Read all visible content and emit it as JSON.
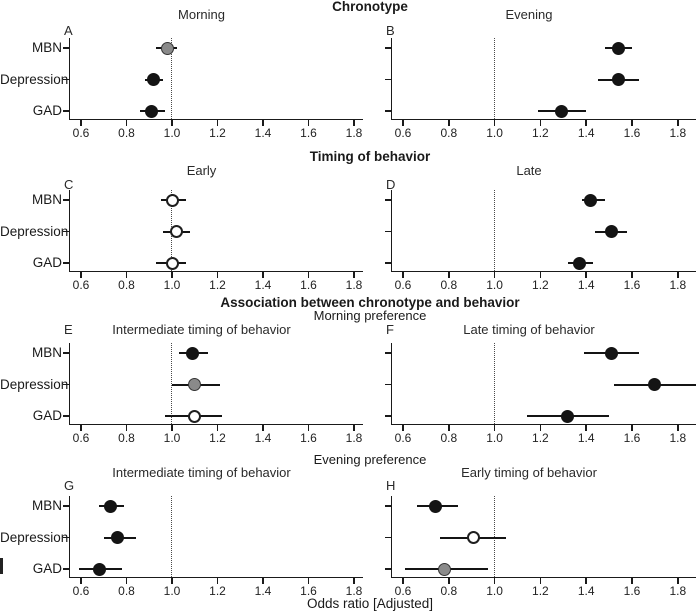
{
  "chart_data": {
    "type": "scatter",
    "subtype": "forest-plot-grid",
    "xlabel": "Odds ratio [Adjusted]",
    "x_ticks": [
      0.6,
      0.8,
      1.0,
      1.2,
      1.4,
      1.6,
      1.8
    ],
    "x_tick_labels": [
      "0.6",
      "0.8",
      "1.0",
      "1.2",
      "1.4",
      "1.6",
      "1.8"
    ],
    "x_domain": [
      0.55,
      1.88
    ],
    "reference_line": 1.0,
    "grid": "off",
    "categories": [
      "MBN",
      "Depression",
      "GAD"
    ],
    "marker_colors": {
      "black": "#141414",
      "gray": "#8a8a8a",
      "open": "#ffffff"
    },
    "axis_color": "#1a1a1a",
    "rows": [
      {
        "header": "Chronotype",
        "subheader": "",
        "panels": [
          {
            "letter": "A",
            "title": "Morning",
            "points": [
              {
                "category": "MBN",
                "or": 0.98,
                "ci_low": 0.93,
                "ci_high": 1.02,
                "marker": "gray"
              },
              {
                "category": "Depression",
                "or": 0.92,
                "ci_low": 0.88,
                "ci_high": 0.96,
                "marker": "black"
              },
              {
                "category": "GAD",
                "or": 0.91,
                "ci_low": 0.86,
                "ci_high": 0.97,
                "marker": "black"
              }
            ]
          },
          {
            "letter": "B",
            "title": "Evening",
            "points": [
              {
                "category": "MBN",
                "or": 1.54,
                "ci_low": 1.48,
                "ci_high": 1.6,
                "marker": "black"
              },
              {
                "category": "Depression",
                "or": 1.54,
                "ci_low": 1.45,
                "ci_high": 1.63,
                "marker": "black"
              },
              {
                "category": "GAD",
                "or": 1.29,
                "ci_low": 1.19,
                "ci_high": 1.4,
                "marker": "black"
              }
            ]
          }
        ]
      },
      {
        "header": "Timing of behavior",
        "subheader": "",
        "panels": [
          {
            "letter": "C",
            "title": "Early",
            "points": [
              {
                "category": "MBN",
                "or": 1.0,
                "ci_low": 0.95,
                "ci_high": 1.06,
                "marker": "open"
              },
              {
                "category": "Depression",
                "or": 1.02,
                "ci_low": 0.96,
                "ci_high": 1.08,
                "marker": "open"
              },
              {
                "category": "GAD",
                "or": 1.0,
                "ci_low": 0.93,
                "ci_high": 1.06,
                "marker": "open"
              }
            ]
          },
          {
            "letter": "D",
            "title": "Late",
            "points": [
              {
                "category": "MBN",
                "or": 1.42,
                "ci_low": 1.38,
                "ci_high": 1.48,
                "marker": "black"
              },
              {
                "category": "Depression",
                "or": 1.51,
                "ci_low": 1.44,
                "ci_high": 1.58,
                "marker": "black"
              },
              {
                "category": "GAD",
                "or": 1.37,
                "ci_low": 1.32,
                "ci_high": 1.43,
                "marker": "black"
              }
            ]
          }
        ]
      },
      {
        "header": "Association between chronotype and behavior",
        "subheader": "Morning preference",
        "panels": [
          {
            "letter": "E",
            "title": "Intermediate timing of behavior",
            "points": [
              {
                "category": "MBN",
                "or": 1.09,
                "ci_low": 1.03,
                "ci_high": 1.16,
                "marker": "black"
              },
              {
                "category": "Depression",
                "or": 1.1,
                "ci_low": 1.0,
                "ci_high": 1.21,
                "marker": "gray"
              },
              {
                "category": "GAD",
                "or": 1.1,
                "ci_low": 0.97,
                "ci_high": 1.22,
                "marker": "open"
              }
            ]
          },
          {
            "letter": "F",
            "title": "Late timing of behavior",
            "points": [
              {
                "category": "MBN",
                "or": 1.51,
                "ci_low": 1.39,
                "ci_high": 1.63,
                "marker": "black"
              },
              {
                "category": "Depression",
                "or": 1.7,
                "ci_low": 1.52,
                "ci_high": 1.88,
                "marker": "black"
              },
              {
                "category": "GAD",
                "or": 1.32,
                "ci_low": 1.14,
                "ci_high": 1.5,
                "marker": "black"
              }
            ]
          }
        ]
      },
      {
        "header": "",
        "subheader": "Evening preference",
        "panels": [
          {
            "letter": "G",
            "title": "Intermediate timing of behavior",
            "points": [
              {
                "category": "MBN",
                "or": 0.73,
                "ci_low": 0.68,
                "ci_high": 0.79,
                "marker": "black"
              },
              {
                "category": "Depression",
                "or": 0.76,
                "ci_low": 0.7,
                "ci_high": 0.84,
                "marker": "black"
              },
              {
                "category": "GAD",
                "or": 0.68,
                "ci_low": 0.59,
                "ci_high": 0.78,
                "marker": "black"
              }
            ]
          },
          {
            "letter": "H",
            "title": "Early timing of behavior",
            "points": [
              {
                "category": "MBN",
                "or": 0.74,
                "ci_low": 0.66,
                "ci_high": 0.84,
                "marker": "black"
              },
              {
                "category": "Depression",
                "or": 0.91,
                "ci_low": 0.76,
                "ci_high": 1.05,
                "marker": "open"
              },
              {
                "category": "GAD",
                "or": 0.78,
                "ci_low": 0.61,
                "ci_high": 0.97,
                "marker": "gray"
              }
            ]
          }
        ]
      }
    ]
  }
}
